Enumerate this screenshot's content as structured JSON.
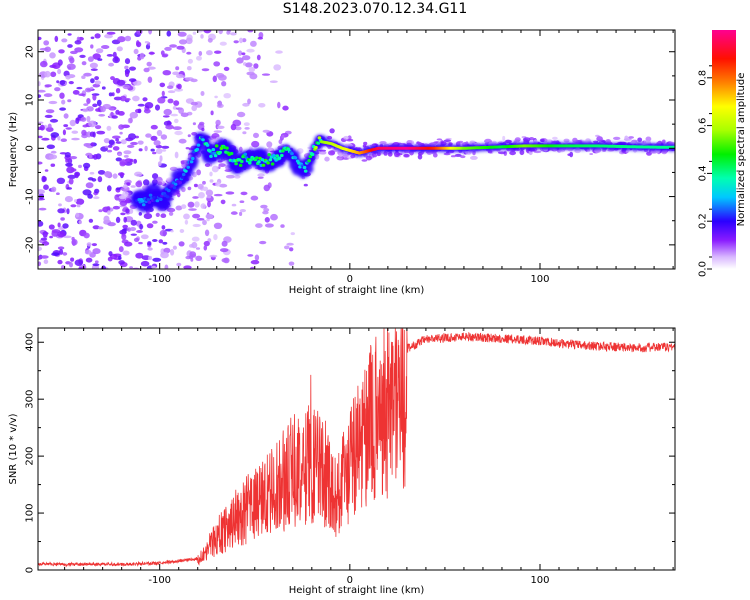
{
  "title": "S148.2023.070.12.34.G11",
  "chart_data": [
    {
      "type": "heatmap",
      "xlabel": "Height of straight line (km)",
      "ylabel": "Frequency (Hz)",
      "xlim": [
        -164,
        171
      ],
      "ylim": [
        -25,
        24.5
      ],
      "xticks": [
        -100,
        0,
        100
      ],
      "yticks": [
        -20,
        -10,
        0,
        10,
        20
      ],
      "colorbar": {
        "label": "Normalized spectral amplitude",
        "range": [
          0.0,
          1.0
        ],
        "ticks": [
          0.0,
          0.2,
          0.4,
          0.6,
          0.8
        ]
      },
      "ridge": [
        {
          "x": -110,
          "y": -11,
          "a": 0.25
        },
        {
          "x": -98,
          "y": -10,
          "a": 0.22
        },
        {
          "x": -90,
          "y": -7,
          "a": 0.25
        },
        {
          "x": -85,
          "y": -4,
          "a": 0.3
        },
        {
          "x": -78,
          "y": 2,
          "a": 0.35
        },
        {
          "x": -73,
          "y": -1,
          "a": 0.4
        },
        {
          "x": -66,
          "y": 0,
          "a": 0.45
        },
        {
          "x": -60,
          "y": -3,
          "a": 0.45
        },
        {
          "x": -52,
          "y": -2,
          "a": 0.4
        },
        {
          "x": -45,
          "y": -3,
          "a": 0.45
        },
        {
          "x": -38,
          "y": -2,
          "a": 0.4
        },
        {
          "x": -33,
          "y": 0,
          "a": 0.45
        },
        {
          "x": -28,
          "y": -3,
          "a": 0.3
        },
        {
          "x": -23,
          "y": -4,
          "a": 0.35
        },
        {
          "x": -17,
          "y": 1.5,
          "a": 0.55
        },
        {
          "x": -10,
          "y": 1,
          "a": 0.6
        },
        {
          "x": -4,
          "y": 0,
          "a": 0.65
        },
        {
          "x": 5,
          "y": -1,
          "a": 0.75
        },
        {
          "x": 15,
          "y": 0,
          "a": 0.95
        },
        {
          "x": 30,
          "y": 0,
          "a": 1.0
        },
        {
          "x": 45,
          "y": 0,
          "a": 0.85
        },
        {
          "x": 60,
          "y": 0,
          "a": 0.55
        },
        {
          "x": 80,
          "y": 0.3,
          "a": 0.45
        },
        {
          "x": 92,
          "y": 0.5,
          "a": 0.55
        },
        {
          "x": 110,
          "y": 0.5,
          "a": 0.45
        },
        {
          "x": 130,
          "y": 0.5,
          "a": 0.42
        },
        {
          "x": 150,
          "y": 0.3,
          "a": 0.4
        },
        {
          "x": 168,
          "y": 0.2,
          "a": 0.4
        }
      ]
    },
    {
      "type": "line",
      "xlabel": "Height of straight line (km)",
      "ylabel": "SNR (10 * v/v)",
      "xlim": [
        -164,
        171
      ],
      "ylim": [
        0,
        425
      ],
      "xticks": [
        -100,
        0,
        100
      ],
      "yticks": [
        0,
        100,
        200,
        300,
        400
      ],
      "color": "#ee3333",
      "series_envelope": [
        {
          "x": -164,
          "y": 10
        },
        {
          "x": -120,
          "y": 10
        },
        {
          "x": -100,
          "y": 12
        },
        {
          "x": -80,
          "y": 20
        },
        {
          "x": -70,
          "y": 70
        },
        {
          "x": -60,
          "y": 110
        },
        {
          "x": -50,
          "y": 140
        },
        {
          "x": -40,
          "y": 170
        },
        {
          "x": -30,
          "y": 210
        },
        {
          "x": -20,
          "y": 230
        },
        {
          "x": -12,
          "y": 210
        },
        {
          "x": -8,
          "y": 150
        },
        {
          "x": -3,
          "y": 190
        },
        {
          "x": 5,
          "y": 270
        },
        {
          "x": 15,
          "y": 330
        },
        {
          "x": 25,
          "y": 380
        },
        {
          "x": 40,
          "y": 405
        },
        {
          "x": 60,
          "y": 410
        },
        {
          "x": 90,
          "y": 405
        },
        {
          "x": 120,
          "y": 395
        },
        {
          "x": 150,
          "y": 390
        },
        {
          "x": 171,
          "y": 392
        }
      ]
    }
  ]
}
